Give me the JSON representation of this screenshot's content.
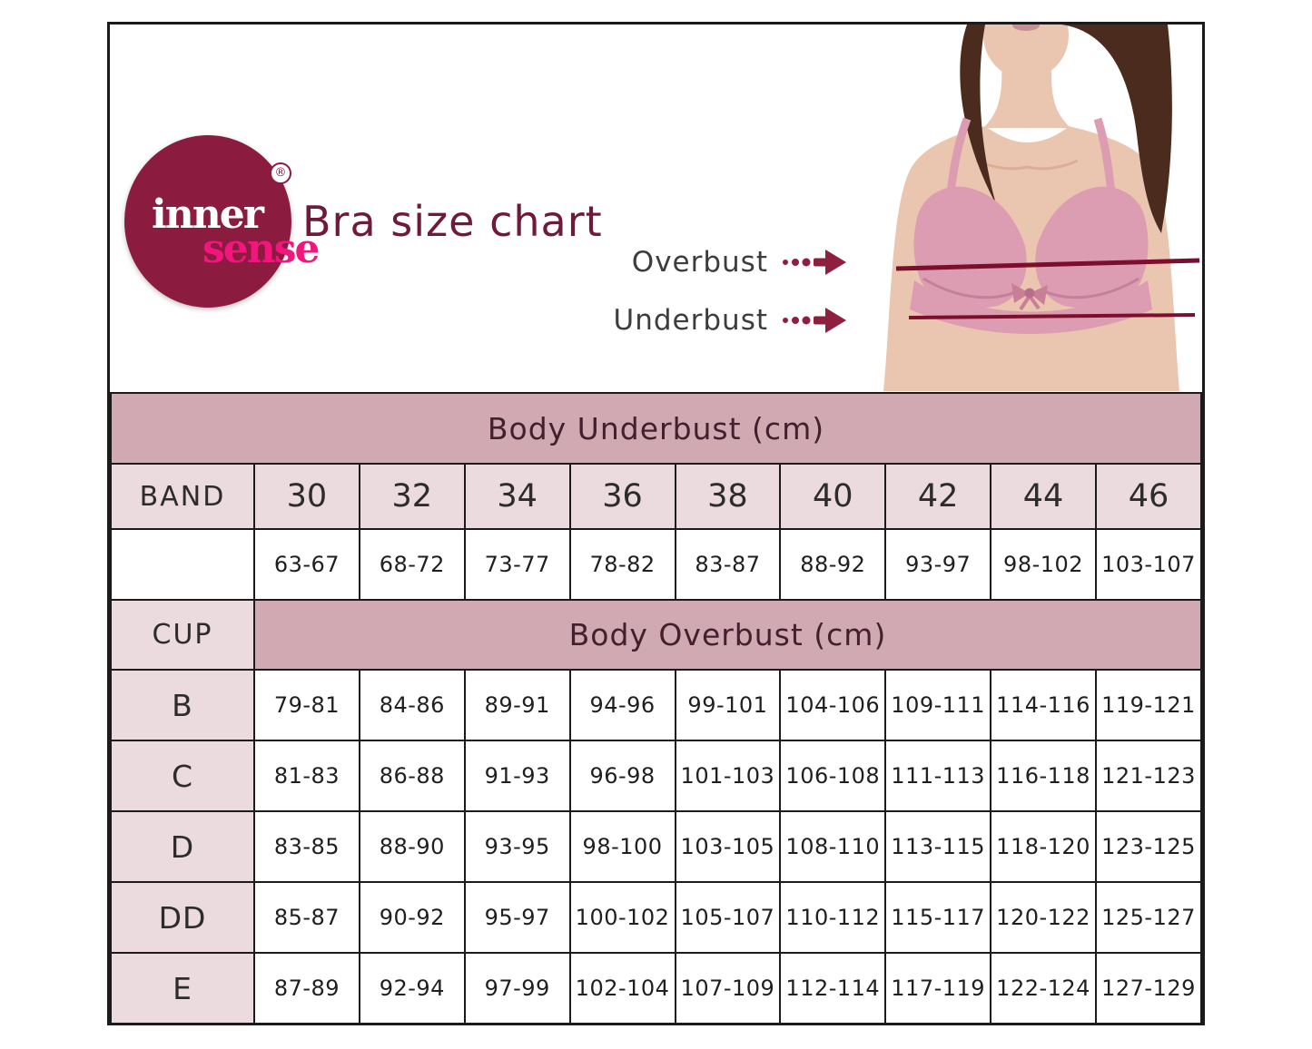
{
  "brand": {
    "name_top": "inner",
    "name_bottom": "sense",
    "registered": "®"
  },
  "header": {
    "title": "Bra size chart"
  },
  "diagram": {
    "overbust_label": "Overbust",
    "underbust_label": "Underbust",
    "icons": [
      "dotted-arrow-right",
      "dotted-arrow-right"
    ]
  },
  "table": {
    "underbust_header": "Body Underbust (cm)",
    "band_label": "BAND",
    "band_sizes": [
      "30",
      "32",
      "34",
      "36",
      "38",
      "40",
      "42",
      "44",
      "46"
    ],
    "underbust_ranges": [
      "63-67",
      "68-72",
      "73-77",
      "78-82",
      "83-87",
      "88-92",
      "93-97",
      "98-102",
      "103-107"
    ],
    "cup_label": "CUP",
    "overbust_header": "Body Overbust (cm)",
    "cup_rows": [
      {
        "cup": "B",
        "overbust_ranges": [
          "79-81",
          "84-86",
          "89-91",
          "94-96",
          "99-101",
          "104-106",
          "109-111",
          "114-116",
          "119-121"
        ]
      },
      {
        "cup": "C",
        "overbust_ranges": [
          "81-83",
          "86-88",
          "91-93",
          "96-98",
          "101-103",
          "106-108",
          "111-113",
          "116-118",
          "121-123"
        ]
      },
      {
        "cup": "D",
        "overbust_ranges": [
          "83-85",
          "88-90",
          "93-95",
          "98-100",
          "103-105",
          "108-110",
          "113-115",
          "118-120",
          "123-125"
        ]
      },
      {
        "cup": "DD",
        "overbust_ranges": [
          "85-87",
          "90-92",
          "95-97",
          "100-102",
          "105-107",
          "110-112",
          "115-117",
          "120-122",
          "125-127"
        ]
      },
      {
        "cup": "E",
        "overbust_ranges": [
          "87-89",
          "92-94",
          "97-99",
          "102-104",
          "107-109",
          "112-114",
          "117-119",
          "122-124",
          "127-129"
        ]
      }
    ]
  },
  "colors": {
    "maroon": "#8c1c3f",
    "brand_pink": "#f2157d",
    "title_maroon": "#701b36",
    "band_mauve": "#d0a9b3",
    "cell_pink": "#ebdade",
    "arrow_maroon": "#8e1f3f",
    "bra_pink": "#dc9cb1",
    "skin": "#eac6b1",
    "hair_brown": "#4a2b1e"
  }
}
